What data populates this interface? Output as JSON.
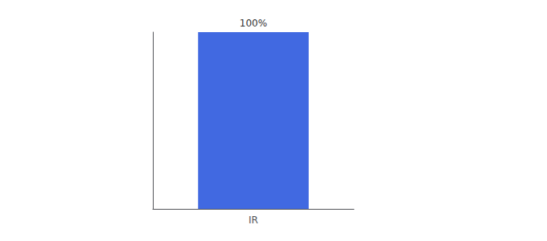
{
  "chart_data": {
    "type": "bar",
    "categories": [
      "IR"
    ],
    "values": [
      100
    ],
    "value_labels": [
      "100%"
    ],
    "color": "#4169E1",
    "ylim": [
      0,
      100
    ],
    "grid": false,
    "data_labels": true,
    "tick_labels": "x"
  }
}
